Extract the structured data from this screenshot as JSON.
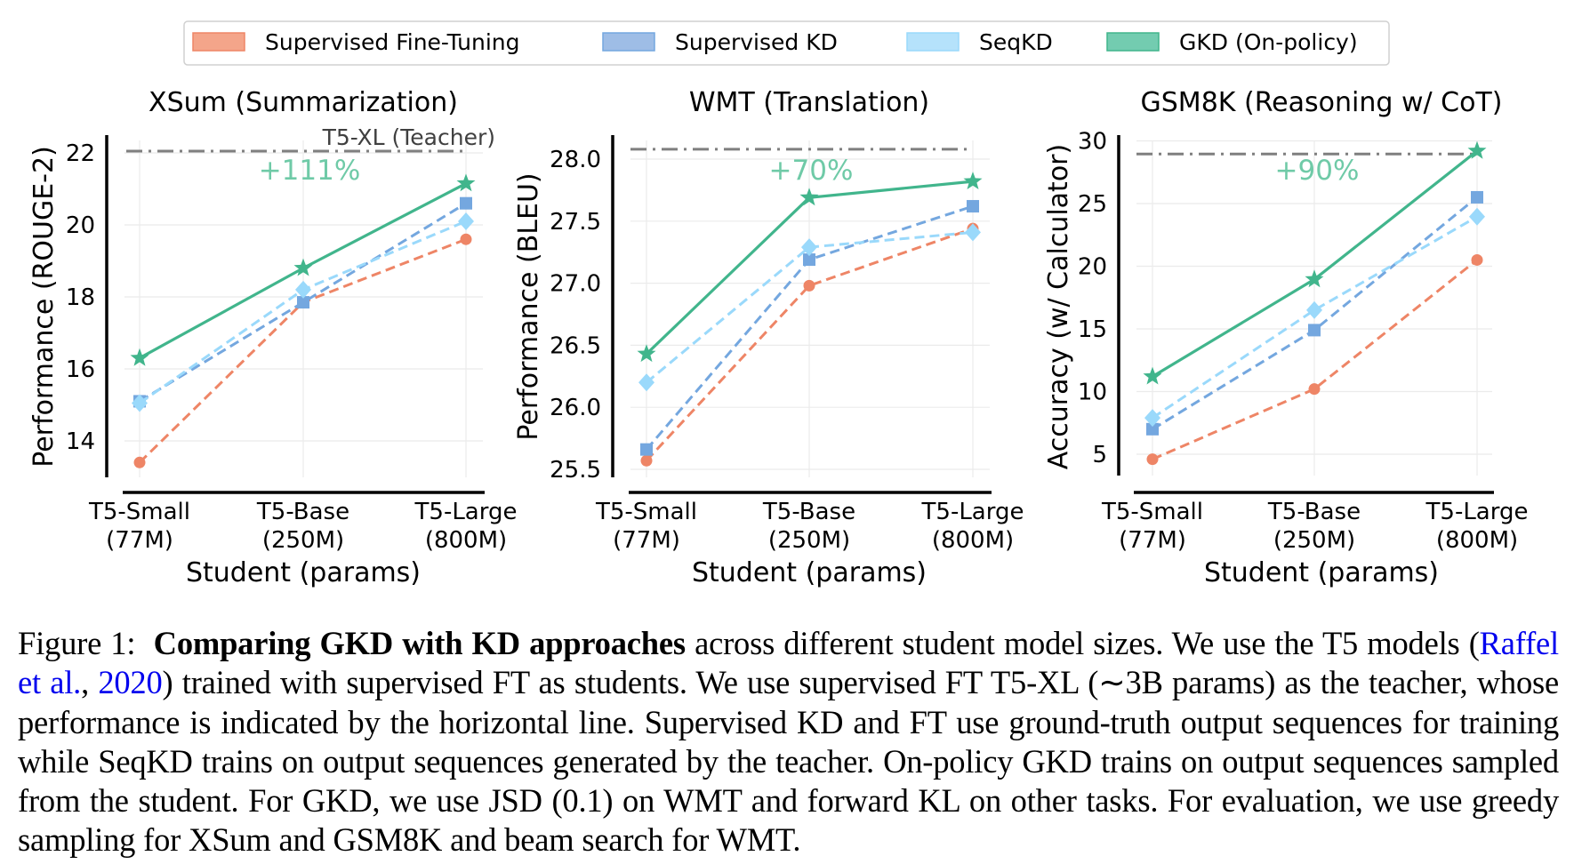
{
  "legend": {
    "items": [
      {
        "label": "Supervised Fine-Tuning",
        "color": "#f4a58a",
        "edge": "#ee8566"
      },
      {
        "label": "Supervised KD",
        "color": "#9ebde6",
        "edge": "#74a7df"
      },
      {
        "label": "SeqKD",
        "color": "#b5e2fb",
        "edge": "#9ad9fb"
      },
      {
        "label": "GKD (On-policy)",
        "color": "#73ccb0",
        "edge": "#41b58c"
      }
    ]
  },
  "chart_data": [
    {
      "type": "line",
      "title": "XSum (Summarization)",
      "xlabel": "Student (params)",
      "ylabel": "Performance (ROUGE-2)",
      "categories": [
        "T5-Small\n(77M)",
        "T5-Base\n(250M)",
        "T5-Large\n(800M)"
      ],
      "yticks": [
        14,
        16,
        18,
        20,
        22
      ],
      "ylim": [
        12.9,
        22.4
      ],
      "grid": true,
      "teacher": {
        "value": 22.05,
        "label": "T5-XL (Teacher)"
      },
      "annotation": "+111%",
      "series": [
        {
          "name": "Supervised Fine-Tuning",
          "values": [
            13.4,
            17.85,
            19.6
          ]
        },
        {
          "name": "Supervised KD",
          "values": [
            15.1,
            17.85,
            20.6
          ]
        },
        {
          "name": "SeqKD",
          "values": [
            15.05,
            18.2,
            20.1
          ]
        },
        {
          "name": "GKD (On-policy)",
          "values": [
            16.3,
            18.8,
            21.15
          ]
        }
      ]
    },
    {
      "type": "line",
      "title": "WMT (Translation)",
      "xlabel": "Student (params)",
      "ylabel": "Performance (BLEU)",
      "categories": [
        "T5-Small\n(77M)",
        "T5-Base\n(250M)",
        "T5-Large\n(800M)"
      ],
      "yticks": [
        25.5,
        26.0,
        26.5,
        27.0,
        27.5,
        28.0
      ],
      "ytick_labels": [
        "25.5",
        "26.0",
        "26.5",
        "27.0",
        "27.5",
        "28.0"
      ],
      "ylim": [
        25.44,
        28.2
      ],
      "grid": true,
      "teacher": {
        "value": 28.08,
        "label": ""
      },
      "annotation": "+70%",
      "series": [
        {
          "name": "Supervised Fine-Tuning",
          "values": [
            25.57,
            26.98,
            27.44
          ]
        },
        {
          "name": "Supervised KD",
          "values": [
            25.66,
            27.19,
            27.62
          ]
        },
        {
          "name": "SeqKD",
          "values": [
            26.2,
            27.29,
            27.41
          ]
        },
        {
          "name": "GKD (On-policy)",
          "values": [
            26.43,
            27.69,
            27.82
          ]
        }
      ]
    },
    {
      "type": "line",
      "title": "GSM8K (Reasoning w/ CoT)",
      "xlabel": "Student (params)",
      "ylabel": "Accuracy (w/ Calculator)",
      "categories": [
        "T5-Small\n(77M)",
        "T5-Base\n(250M)",
        "T5-Large\n(800M)"
      ],
      "yticks": [
        5,
        10,
        15,
        20,
        25,
        30
      ],
      "ylim": [
        3.3,
        30.4
      ],
      "grid": true,
      "teacher": {
        "value": 28.95,
        "label": ""
      },
      "annotation": "+90%",
      "series": [
        {
          "name": "Supervised Fine-Tuning",
          "values": [
            4.6,
            10.2,
            20.5
          ]
        },
        {
          "name": "Supervised KD",
          "values": [
            7.0,
            14.9,
            25.5
          ]
        },
        {
          "name": "SeqKD",
          "values": [
            7.9,
            16.5,
            23.95
          ]
        },
        {
          "name": "GKD (On-policy)",
          "values": [
            11.2,
            18.95,
            29.2
          ]
        }
      ]
    }
  ],
  "styles": {
    "series_colors": [
      "#ee8566",
      "#74a7df",
      "#9ad9fb",
      "#41b58c"
    ],
    "series_markers": [
      "circle",
      "square",
      "diamond",
      "star"
    ],
    "series_dashed": [
      true,
      true,
      true,
      false
    ],
    "teacher_color": "#7f7f7f",
    "annotation_color": "#6fcaa7",
    "teacher_label_color": "#404040"
  },
  "caption": {
    "prefix": "Figure 1:",
    "bold": "Comparing GKD with KD approaches",
    "text1": " across different student model sizes.  We use the T5 models (",
    "cite_author": "Raffel et al.",
    "cite_sep": ", ",
    "cite_year": "2020",
    "text2": ") trained with supervised FT as students. We use supervised FT T5-XL (∼3B params) as the teacher, whose performance is indicated by the horizontal line. Supervised KD and FT use ground-truth output sequences for training while SeqKD trains on output sequences generated by the teacher. On-policy GKD trains on output sequences sampled from the student. For GKD, we use JSD (0.1) on WMT and forward KL on other tasks. For evaluation, we use greedy sampling for XSum and GSM8K and beam search for WMT."
  }
}
